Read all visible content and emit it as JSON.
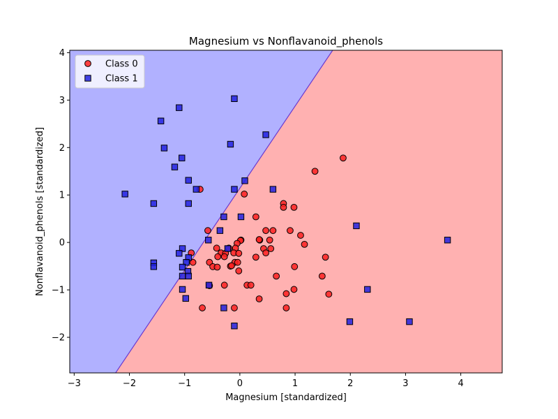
{
  "chart_data": {
    "type": "scatter",
    "title": "Magnesium vs Nonflavanoid_phenols",
    "xlabel": "Magnesium [standardized]",
    "ylabel": "Nonflavanoid_phenols [standardized]",
    "xlim": [
      -3.08,
      4.75
    ],
    "ylim": [
      -2.75,
      4.05
    ],
    "xticks": [
      -3,
      -2,
      -1,
      0,
      1,
      2,
      3,
      4
    ],
    "yticks": [
      -2,
      -1,
      0,
      1,
      2,
      3,
      4
    ],
    "xtick_labels": [
      "−3",
      "−2",
      "−1",
      "0",
      "1",
      "2",
      "3",
      "4"
    ],
    "ytick_labels": [
      "−2",
      "−1",
      "0",
      "1",
      "2",
      "3",
      "4"
    ],
    "grid": false,
    "legend_position": "upper-left",
    "decision_regions": {
      "boundary_line": [
        [
          -2.25,
          -2.75
        ],
        [
          1.68,
          4.05
        ]
      ],
      "class_0_region_color": "#ffb1b1",
      "class_1_region_color": "#b1b1ff",
      "boundary_color": "#6a3ad0"
    },
    "series": [
      {
        "name": "Class 0",
        "marker": "circle",
        "color": "#ff2020",
        "edge_color": "#000000",
        "points": [
          [
            -0.72,
            1.12
          ],
          [
            1.87,
            1.78
          ],
          [
            1.36,
            1.5
          ],
          [
            0.08,
            1.02
          ],
          [
            0.79,
            0.82
          ],
          [
            0.79,
            0.74
          ],
          [
            0.98,
            0.74
          ],
          [
            0.29,
            0.54
          ],
          [
            -0.58,
            0.25
          ],
          [
            0.47,
            0.25
          ],
          [
            0.6,
            0.25
          ],
          [
            0.91,
            0.25
          ],
          [
            1.1,
            0.15
          ],
          [
            0.02,
            0.05
          ],
          [
            0.36,
            0.05
          ],
          [
            0.54,
            0.05
          ],
          [
            0.35,
            0.06
          ],
          [
            0.01,
            0.04
          ],
          [
            -0.05,
            -0.02
          ],
          [
            1.17,
            -0.04
          ],
          [
            -0.42,
            -0.12
          ],
          [
            -0.2,
            -0.12
          ],
          [
            -0.08,
            -0.12
          ],
          [
            0.43,
            -0.13
          ],
          [
            0.56,
            -0.13
          ],
          [
            -0.88,
            -0.22
          ],
          [
            -0.34,
            -0.22
          ],
          [
            -0.26,
            -0.23
          ],
          [
            -0.11,
            -0.22
          ],
          [
            -0.02,
            -0.23
          ],
          [
            0.47,
            -0.22
          ],
          [
            -0.4,
            -0.3
          ],
          [
            -0.28,
            -0.3
          ],
          [
            0.29,
            -0.31
          ],
          [
            1.55,
            -0.31
          ],
          [
            -0.85,
            -0.42
          ],
          [
            -0.55,
            -0.42
          ],
          [
            -0.09,
            -0.42
          ],
          [
            -0.04,
            -0.42
          ],
          [
            -0.17,
            -0.5
          ],
          [
            -0.15,
            -0.49
          ],
          [
            -0.49,
            -0.51
          ],
          [
            -0.41,
            -0.52
          ],
          [
            0.99,
            -0.51
          ],
          [
            -0.02,
            -0.6
          ],
          [
            0.66,
            -0.71
          ],
          [
            1.49,
            -0.71
          ],
          [
            -0.28,
            -0.9
          ],
          [
            0.13,
            -0.9
          ],
          [
            0.2,
            -0.9
          ],
          [
            -0.55,
            -0.91
          ],
          [
            0.84,
            -1.08
          ],
          [
            0.98,
            -0.99
          ],
          [
            1.61,
            -1.09
          ],
          [
            0.35,
            -1.19
          ],
          [
            -0.68,
            -1.38
          ],
          [
            -0.1,
            -1.38
          ],
          [
            0.84,
            -1.38
          ]
        ]
      },
      {
        "name": "Class 1",
        "marker": "square",
        "color": "#2222e0",
        "edge_color": "#000000",
        "points": [
          [
            -0.1,
            3.03
          ],
          [
            -1.1,
            2.84
          ],
          [
            -1.43,
            2.56
          ],
          [
            0.47,
            2.27
          ],
          [
            -0.17,
            2.07
          ],
          [
            -1.37,
            1.99
          ],
          [
            -1.05,
            1.78
          ],
          [
            -1.18,
            1.59
          ],
          [
            -0.93,
            1.31
          ],
          [
            0.09,
            1.3
          ],
          [
            -0.79,
            1.12
          ],
          [
            -0.1,
            1.12
          ],
          [
            0.6,
            1.12
          ],
          [
            -2.08,
            1.02
          ],
          [
            -1.56,
            0.82
          ],
          [
            -0.93,
            0.82
          ],
          [
            -0.29,
            0.54
          ],
          [
            0.02,
            0.54
          ],
          [
            2.11,
            0.35
          ],
          [
            -0.36,
            0.25
          ],
          [
            -0.57,
            0.05
          ],
          [
            3.76,
            0.05
          ],
          [
            -1.04,
            -0.13
          ],
          [
            -0.22,
            -0.13
          ],
          [
            -1.1,
            -0.23
          ],
          [
            -0.93,
            -0.32
          ],
          [
            -0.97,
            -0.42
          ],
          [
            -1.56,
            -0.43
          ],
          [
            -1.56,
            -0.51
          ],
          [
            -1.04,
            -0.52
          ],
          [
            -0.94,
            -0.61
          ],
          [
            -1.04,
            -0.71
          ],
          [
            -0.93,
            -0.71
          ],
          [
            -0.56,
            -0.9
          ],
          [
            -1.04,
            -0.99
          ],
          [
            2.31,
            -0.99
          ],
          [
            -0.98,
            -1.18
          ],
          [
            -0.29,
            -1.38
          ],
          [
            1.99,
            -1.67
          ],
          [
            3.07,
            -1.67
          ],
          [
            -0.1,
            -1.76
          ]
        ]
      }
    ]
  }
}
